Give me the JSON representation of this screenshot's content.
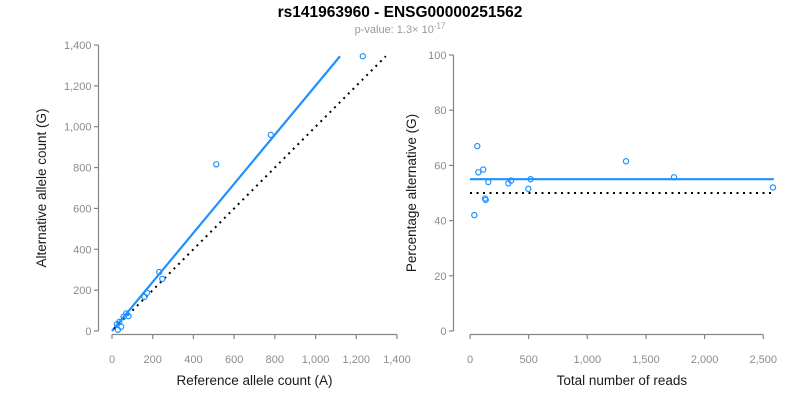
{
  "header": {
    "title": "rs141963960 - ENSG00000251562",
    "pvalue_text": "p-value: 1.3× 10",
    "pvalue_exponent": "-17"
  },
  "colors": {
    "fit_line": "#1E90FF",
    "point": "#1E90FF",
    "reference_line": "#000000",
    "axis": "#858585",
    "tick_label": "#8C8C8C",
    "axis_title": "#1A1A1A",
    "subtitle": "#9A9A9A"
  },
  "chart_data": [
    {
      "type": "scatter",
      "name": "allele-counts",
      "xlabel": "Reference allele count (A)",
      "ylabel": "Alternative allele count (G)",
      "xlim": [
        0,
        1400
      ],
      "ylim": [
        0,
        1400
      ],
      "grid": false,
      "legend": null,
      "xticks": {
        "values": [
          0,
          200,
          400,
          600,
          800,
          1000,
          1200,
          1400
        ],
        "labels": [
          "0",
          "200",
          "400",
          "600",
          "800",
          "1,000",
          "1,200",
          "1,400"
        ]
      },
      "yticks": {
        "values": [
          0,
          200,
          400,
          600,
          800,
          1000,
          1200,
          1400
        ],
        "labels": [
          "0",
          "200",
          "400",
          "600",
          "800",
          "1,000",
          "1,200",
          "1,400"
        ]
      },
      "points": [
        [
          29,
          6
        ],
        [
          24,
          33
        ],
        [
          36,
          44
        ],
        [
          45,
          21
        ],
        [
          57,
          70
        ],
        [
          70,
          86
        ],
        [
          81,
          73
        ],
        [
          159,
          167
        ],
        [
          172,
          187
        ],
        [
          232,
          289
        ],
        [
          247,
          255
        ],
        [
          512,
          816
        ],
        [
          780,
          960
        ],
        [
          1232,
          1345
        ]
      ],
      "lines": [
        {
          "name": "fit-line",
          "style": "solid",
          "color_key": "fit_line",
          "x": [
            0,
            1120
          ],
          "y": [
            0,
            1345
          ]
        },
        {
          "name": "identity-line",
          "style": "dotted",
          "color_key": "reference_line",
          "x": [
            10,
            1345
          ],
          "y": [
            10,
            1345
          ]
        }
      ]
    },
    {
      "type": "scatter",
      "name": "percentage-vs-reads",
      "xlabel": "Total number of reads",
      "ylabel": "Percentage alternative (G)",
      "xlim": [
        0,
        2590
      ],
      "ylim": [
        0,
        100
      ],
      "grid": false,
      "legend": null,
      "xticks": {
        "values": [
          0,
          500,
          1000,
          1500,
          2000,
          2500
        ],
        "labels": [
          "0",
          "500",
          "1,000",
          "1,500",
          "2,000",
          "2,500"
        ]
      },
      "yticks": {
        "values": [
          0,
          20,
          40,
          60,
          80,
          100
        ],
        "labels": [
          "0",
          "20",
          "40",
          "60",
          "80",
          "100"
        ]
      },
      "points": [
        [
          37,
          42
        ],
        [
          62,
          67
        ],
        [
          71,
          57.5
        ],
        [
          113,
          58.5
        ],
        [
          128,
          48
        ],
        [
          134,
          47.5
        ],
        [
          156,
          54
        ],
        [
          327,
          53.5
        ],
        [
          350,
          54.5
        ],
        [
          497,
          51.5
        ],
        [
          517,
          55
        ],
        [
          1330,
          61.5
        ],
        [
          1739,
          55.7
        ],
        [
          2583,
          52
        ]
      ],
      "lines": [
        {
          "name": "fit-line",
          "style": "solid",
          "color_key": "fit_line",
          "x": [
            0,
            2590
          ],
          "y": [
            55,
            55
          ]
        },
        {
          "name": "reference-line",
          "style": "dotted",
          "color_key": "reference_line",
          "x": [
            0,
            2590
          ],
          "y": [
            50,
            50
          ]
        }
      ]
    }
  ]
}
